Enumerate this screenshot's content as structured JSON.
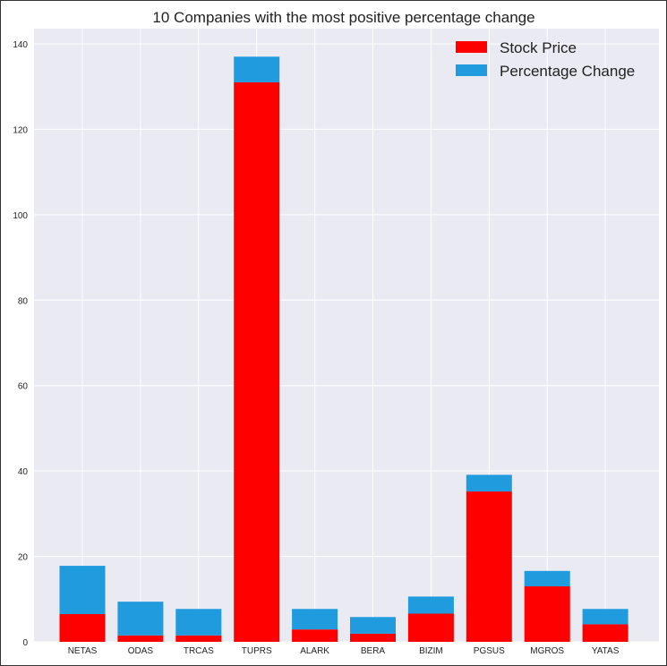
{
  "chart_data": {
    "type": "bar",
    "stacked": true,
    "title": "10 Companies with the most positive percentage change",
    "xlabel": "",
    "ylabel": "",
    "categories": [
      "NETAS",
      "ODAS",
      "TRCAS",
      "TUPRS",
      "ALARK",
      "BERA",
      "BIZIM",
      "PGSUS",
      "MGROS",
      "YATAS"
    ],
    "series": [
      {
        "name": "Stock Price",
        "color": "#ff0000",
        "values": [
          6.5,
          1.5,
          1.5,
          131,
          2.9,
          1.9,
          6.6,
          35.2,
          13.0,
          4.1
        ]
      },
      {
        "name": "Percentage Change",
        "color": "#1f9bde",
        "values": [
          11.3,
          7.9,
          6.2,
          6.0,
          4.8,
          3.9,
          4.0,
          3.9,
          3.6,
          3.6
        ]
      }
    ],
    "ylim": [
      0,
      140
    ],
    "yticks": [
      0,
      20,
      40,
      60,
      80,
      100,
      120,
      140
    ],
    "grid": true,
    "legend_position": "top-right",
    "background_color": "#eaeaf2"
  }
}
